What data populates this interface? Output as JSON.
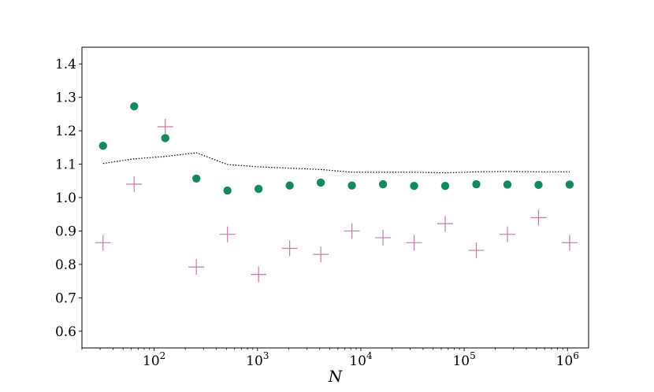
{
  "chart_data": {
    "type": "scatter",
    "title": "",
    "xlabel": "N",
    "ylabel": "",
    "xscale": "log",
    "xlim": [
      20,
      1600000
    ],
    "ylim": [
      0.55,
      1.45
    ],
    "grid": false,
    "yticks": [
      {
        "value": 0.6,
        "label": "0.6"
      },
      {
        "value": 0.7,
        "label": "0.7"
      },
      {
        "value": 0.8,
        "label": "0.8"
      },
      {
        "value": 0.9,
        "label": "0.9"
      },
      {
        "value": 1.0,
        "label": "1.0"
      },
      {
        "value": 1.1,
        "label": "1.1"
      },
      {
        "value": 1.2,
        "label": "1.2"
      },
      {
        "value": 1.3,
        "label": "1.3"
      },
      {
        "value": 1.4,
        "label": "1.4"
      }
    ],
    "xticks": [
      {
        "value": 100,
        "base": "10",
        "exp": "2"
      },
      {
        "value": 1000,
        "base": "10",
        "exp": "3"
      },
      {
        "value": 10000,
        "base": "10",
        "exp": "4"
      },
      {
        "value": 100000,
        "base": "10",
        "exp": "5"
      },
      {
        "value": 1000000,
        "base": "10",
        "exp": "6"
      }
    ],
    "x": [
      32,
      64,
      128,
      256,
      512,
      1024,
      2048,
      4096,
      8192,
      16384,
      32768,
      65536,
      131072,
      262144,
      524288,
      1048576
    ],
    "series": [
      {
        "marker": "circle",
        "color": "#138a5e",
        "values": [
          1.155,
          1.273,
          1.178,
          1.057,
          1.021,
          1.026,
          1.036,
          1.045,
          1.036,
          1.04,
          1.035,
          1.035,
          1.04,
          1.039,
          1.038,
          1.039
        ]
      },
      {
        "marker": "plus",
        "color": "#c978a8",
        "values": [
          0.865,
          1.04,
          1.212,
          0.792,
          0.89,
          0.77,
          0.848,
          0.83,
          0.9,
          0.88,
          0.865,
          0.922,
          0.842,
          0.89,
          0.94,
          0.865
        ]
      },
      {
        "marker": "dotted-line",
        "color": "#000000",
        "values": [
          1.102,
          1.116,
          1.123,
          1.134,
          1.099,
          1.092,
          1.088,
          1.084,
          1.076,
          1.076,
          1.076,
          1.074,
          1.077,
          1.078,
          1.077,
          1.077
        ]
      }
    ]
  }
}
